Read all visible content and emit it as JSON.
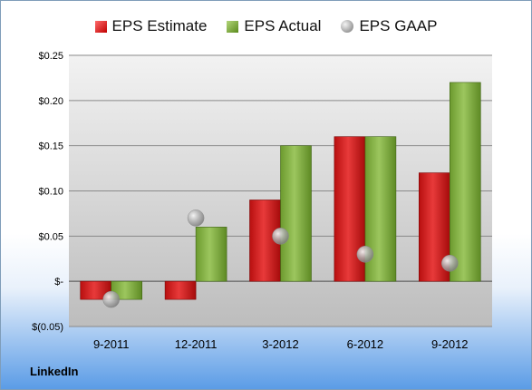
{
  "chart_data": {
    "type": "bar",
    "categories": [
      "9-2011",
      "12-2011",
      "3-2012",
      "6-2012",
      "9-2012"
    ],
    "series": [
      {
        "name": "EPS Estimate",
        "kind": "bar",
        "color": "#d42a2a",
        "values": [
          -0.02,
          -0.02,
          0.09,
          0.16,
          0.12
        ]
      },
      {
        "name": "EPS Actual",
        "kind": "bar",
        "color": "#8cb650",
        "values": [
          -0.02,
          0.06,
          0.15,
          0.16,
          0.22
        ]
      },
      {
        "name": "EPS GAAP",
        "kind": "marker",
        "color": "#a6a6a6",
        "values": [
          -0.02,
          0.07,
          0.05,
          0.03,
          0.02
        ]
      }
    ],
    "ylim": [
      -0.05,
      0.25
    ],
    "yticks": [
      -0.05,
      0,
      0.05,
      0.1,
      0.15,
      0.2,
      0.25
    ],
    "ytick_labels": [
      "$(0.05)",
      "$-",
      "$0.05",
      "$0.10",
      "$0.15",
      "$0.20",
      "$0.25"
    ],
    "grid": true,
    "legend_position": "top"
  },
  "footer": {
    "label": "LinkedIn"
  }
}
